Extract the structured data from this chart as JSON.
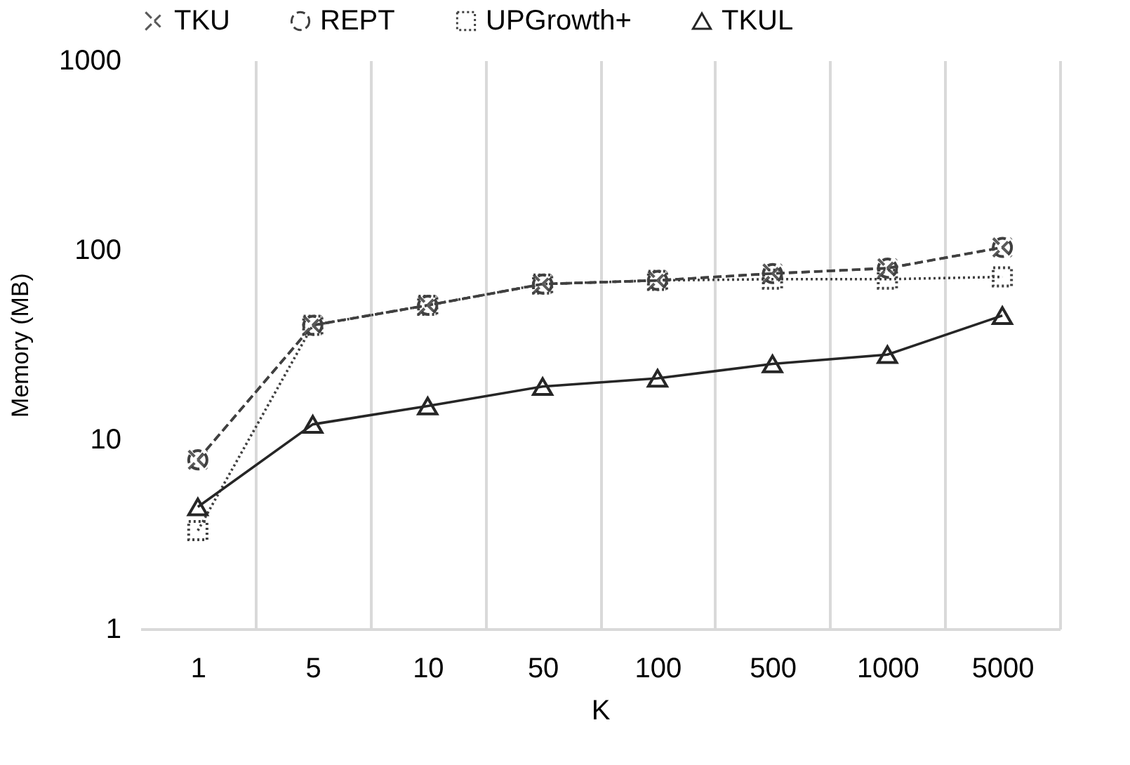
{
  "chart_data": {
    "type": "line",
    "xlabel": "K",
    "ylabel": "Memory (MB)",
    "categories": [
      "1",
      "5",
      "10",
      "50",
      "100",
      "500",
      "1000",
      "5000"
    ],
    "series": [
      {
        "name": "TKU",
        "color": "#595959",
        "marker": "cross",
        "line_style": "dashed",
        "values": [
          7.8,
          40,
          51,
          66,
          69,
          75,
          80,
          103
        ]
      },
      {
        "name": "REPT",
        "color": "#404040",
        "marker": "circle",
        "line_style": "dashed",
        "values": [
          7.8,
          40,
          51,
          66,
          69,
          75,
          80,
          103
        ]
      },
      {
        "name": "UPGrowth+",
        "color": "#404040",
        "marker": "square",
        "line_style": "dotted",
        "values": [
          3.3,
          40,
          51,
          66,
          69,
          70,
          70,
          72
        ]
      },
      {
        "name": "TKUL",
        "color": "#262626",
        "marker": "triangle",
        "line_style": "solid",
        "values": [
          4.4,
          12,
          15,
          19,
          21,
          25,
          28,
          45
        ]
      }
    ],
    "log": "y",
    "ylim": [
      1,
      1000
    ],
    "yticks": [
      1,
      10,
      100,
      1000
    ],
    "grid": "x",
    "legend": "top"
  }
}
